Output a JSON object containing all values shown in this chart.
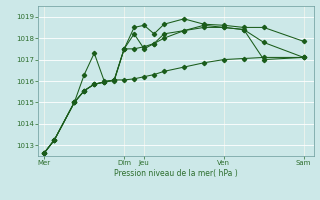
{
  "bg_color": "#cce8e8",
  "grid_color": "#ffffff",
  "line_color": "#1a5c1a",
  "vline_color": "#2d6e2d",
  "tick_color": "#2d6e2d",
  "label_text": "Pression niveau de la mer( hPa )",
  "x_tick_labels": [
    "Mer",
    "Dim",
    "Jeu",
    "Ven",
    "Sam"
  ],
  "x_tick_positions": [
    0,
    4,
    5,
    9,
    13
  ],
  "ylim": [
    1012.5,
    1019.5
  ],
  "yticks": [
    1013,
    1014,
    1015,
    1016,
    1017,
    1018,
    1019
  ],
  "xlim": [
    -0.3,
    13.5
  ],
  "x_data": [
    0,
    0.5,
    1.5,
    2.0,
    2.5,
    3.0,
    3.5,
    4.0,
    4.5,
    5.0,
    5.5,
    6.0,
    7.0,
    8.0,
    9.0,
    10.0,
    11.0,
    13.0
  ],
  "s1": [
    1012.65,
    1013.25,
    1015.0,
    1015.55,
    1015.85,
    1015.95,
    1016.05,
    1016.05,
    1016.1,
    1016.2,
    1016.3,
    1016.45,
    1016.65,
    1016.85,
    1017.0,
    1017.05,
    1017.1,
    1017.1
  ],
  "s2": [
    1012.65,
    1013.25,
    1015.0,
    1016.3,
    1017.3,
    1016.0,
    1016.0,
    1017.5,
    1018.2,
    1017.5,
    1017.75,
    1018.2,
    1018.35,
    1018.6,
    1018.5,
    1018.4,
    1017.8,
    1017.1
  ],
  "s3": [
    1012.65,
    1013.25,
    1015.0,
    1015.55,
    1015.85,
    1015.95,
    1016.05,
    1017.5,
    1018.5,
    1018.6,
    1018.2,
    1018.65,
    1018.9,
    1018.65,
    1018.6,
    1018.5,
    1018.5,
    1017.85
  ],
  "s4": [
    1012.65,
    1013.25,
    1015.0,
    1015.55,
    1015.85,
    1015.95,
    1016.05,
    1017.5,
    1017.5,
    1017.6,
    1017.75,
    1018.0,
    1018.35,
    1018.5,
    1018.5,
    1018.4,
    1017.0,
    1017.1
  ]
}
